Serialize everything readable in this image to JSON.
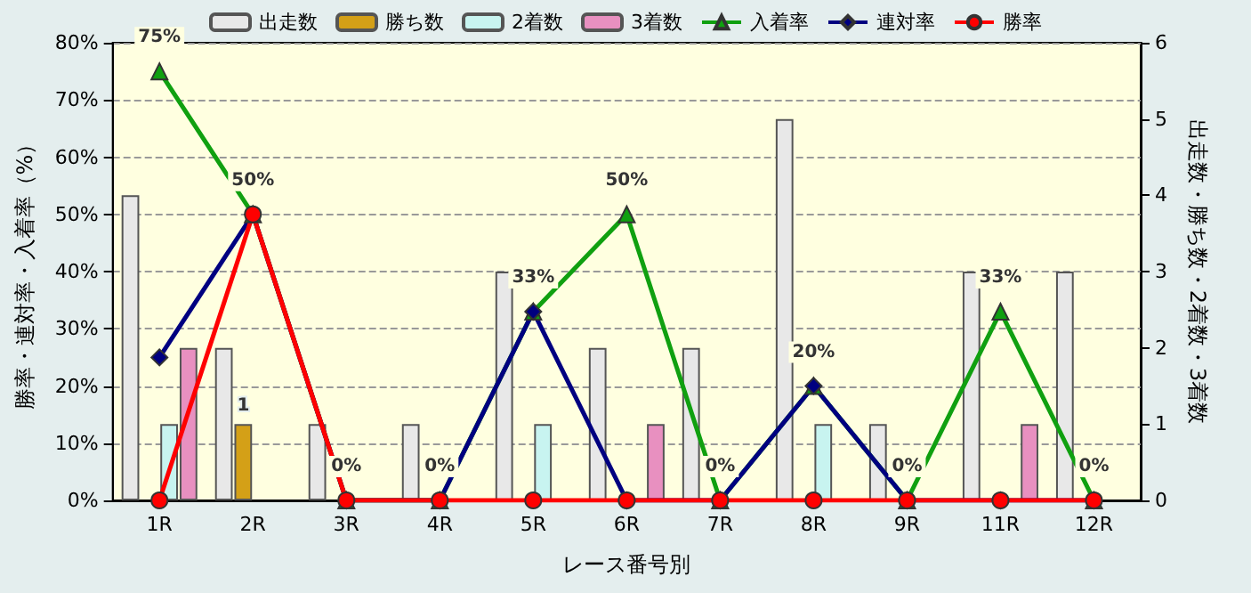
{
  "chart_data": {
    "type": "bar",
    "xlabel": "レース番号別",
    "ylabel": "勝率・連対率・入着率（%）",
    "y2label": "出走数・勝ち数・2着数・3着数",
    "categories": [
      "1R",
      "2R",
      "3R",
      "4R",
      "5R",
      "6R",
      "7R",
      "8R",
      "9R",
      "11R",
      "12R"
    ],
    "series": [
      {
        "name": "出走数",
        "axis": "y2",
        "color": "#e8e8e8",
        "values": [
          4,
          2,
          1,
          1,
          3,
          2,
          2,
          5,
          1,
          3,
          3
        ]
      },
      {
        "name": "勝ち数",
        "axis": "y2",
        "color": "#d4a017",
        "values": [
          0,
          1,
          0,
          0,
          0,
          0,
          0,
          0,
          0,
          0,
          0
        ],
        "value_labels": [
          null,
          "1",
          null,
          null,
          null,
          null,
          null,
          null,
          null,
          null,
          null
        ]
      },
      {
        "name": "2着数",
        "axis": "y2",
        "color": "#c8f4f0",
        "values": [
          1,
          0,
          0,
          0,
          1,
          0,
          0,
          1,
          0,
          0,
          0
        ]
      },
      {
        "name": "3着数",
        "axis": "y2",
        "color": "#e890c0",
        "values": [
          2,
          0,
          0,
          0,
          0,
          1,
          0,
          0,
          0,
          1,
          0
        ]
      },
      {
        "name": "入着率",
        "type": "line",
        "axis": "y",
        "color": "#10a010",
        "marker": "triangle",
        "values": [
          75,
          50,
          0,
          0,
          33,
          50,
          0,
          20,
          0,
          33,
          0
        ],
        "value_labels": [
          "75%",
          "50%",
          "0%",
          "0%",
          "33%",
          "50%",
          "0%",
          "20%",
          "0%",
          "33%",
          "0%"
        ]
      },
      {
        "name": "連対率",
        "type": "line",
        "axis": "y",
        "color": "#000080",
        "marker": "diamond",
        "values": [
          25,
          50,
          0,
          0,
          33,
          0,
          0,
          20,
          0,
          0,
          0
        ]
      },
      {
        "name": "勝率",
        "type": "line",
        "axis": "y",
        "color": "#ff0000",
        "marker": "circle",
        "values": [
          0,
          50,
          0,
          0,
          0,
          0,
          0,
          0,
          0,
          0,
          0
        ]
      }
    ],
    "ylim": [
      0,
      80
    ],
    "yticks": [
      {
        "value": 0,
        "label": "0%"
      },
      {
        "value": 10,
        "label": "10%"
      },
      {
        "value": 20,
        "label": "20%"
      },
      {
        "value": 30,
        "label": "30%"
      },
      {
        "value": 40,
        "label": "40%"
      },
      {
        "value": 50,
        "label": "50%"
      },
      {
        "value": 60,
        "label": "60%"
      },
      {
        "value": 70,
        "label": "70%"
      },
      {
        "value": 80,
        "label": "80%"
      }
    ],
    "y2lim": [
      0,
      6
    ],
    "y2ticks": [
      0,
      1,
      2,
      3,
      4,
      5,
      6
    ],
    "grid": "y",
    "legend": "top",
    "line_style": "solid"
  }
}
